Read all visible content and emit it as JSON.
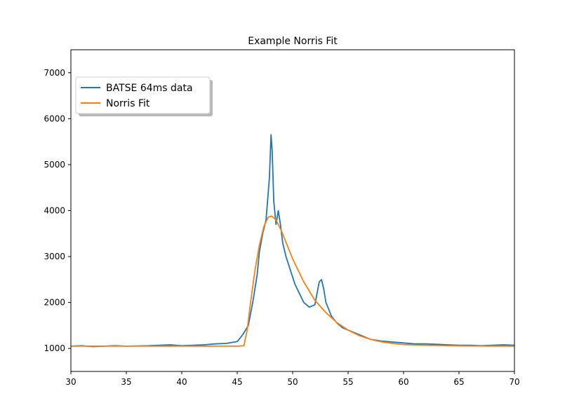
{
  "chart_data": {
    "type": "line",
    "title": "Example Norris Fit",
    "xlabel": "",
    "ylabel": "",
    "xlim": [
      30,
      70
    ],
    "ylim": [
      500,
      7500
    ],
    "xticks": [
      30,
      35,
      40,
      45,
      50,
      55,
      60,
      65,
      70
    ],
    "yticks": [
      1000,
      2000,
      3000,
      4000,
      5000,
      6000,
      7000
    ],
    "grid": false,
    "legend_position": "top-left",
    "series": [
      {
        "name": "BATSE 64ms data",
        "color": "#1f77b4",
        "x": [
          30.0,
          31.0,
          32.0,
          33.0,
          34.0,
          35.0,
          36.0,
          37.0,
          38.0,
          39.0,
          40.0,
          41.0,
          42.0,
          43.0,
          44.0,
          45.0,
          45.5,
          46.0,
          46.4,
          46.8,
          47.0,
          47.3,
          47.6,
          47.9,
          48.05,
          48.15,
          48.3,
          48.5,
          48.7,
          48.9,
          49.1,
          49.4,
          49.8,
          50.2,
          50.6,
          51.0,
          51.5,
          52.0,
          52.4,
          52.6,
          52.8,
          53.0,
          53.5,
          54.0,
          54.5,
          55.0,
          56.0,
          57.0,
          58.0,
          59.0,
          60.0,
          61.0,
          62.0,
          63.0,
          64.0,
          65.0,
          66.0,
          67.0,
          68.0,
          69.0,
          70.0
        ],
        "y": [
          1050,
          1060,
          1040,
          1050,
          1060,
          1050,
          1055,
          1060,
          1070,
          1080,
          1060,
          1070,
          1080,
          1100,
          1110,
          1150,
          1300,
          1500,
          2000,
          2600,
          3100,
          3500,
          3800,
          4700,
          5650,
          5300,
          4200,
          3700,
          4000,
          3700,
          3300,
          3000,
          2700,
          2400,
          2200,
          2000,
          1900,
          1950,
          2450,
          2500,
          2300,
          2000,
          1700,
          1550,
          1450,
          1400,
          1300,
          1200,
          1160,
          1140,
          1120,
          1100,
          1100,
          1090,
          1080,
          1070,
          1070,
          1060,
          1070,
          1080,
          1070
        ]
      },
      {
        "name": "Norris Fit",
        "color": "#ff7f0e",
        "x": [
          30.0,
          35.0,
          40.0,
          45.0,
          45.6,
          45.9,
          46.2,
          46.6,
          47.0,
          47.4,
          47.8,
          48.1,
          48.5,
          49.0,
          49.5,
          50.0,
          51.0,
          52.0,
          53.0,
          54.0,
          55.0,
          56.0,
          57.0,
          58.0,
          59.0,
          60.0,
          62.0,
          64.0,
          66.0,
          68.0,
          70.0
        ],
        "y": [
          1050,
          1050,
          1050,
          1050,
          1060,
          1400,
          2000,
          2700,
          3250,
          3650,
          3860,
          3880,
          3800,
          3550,
          3250,
          2950,
          2450,
          2050,
          1780,
          1560,
          1400,
          1280,
          1200,
          1145,
          1110,
          1085,
          1070,
          1060,
          1055,
          1052,
          1050
        ]
      }
    ]
  }
}
